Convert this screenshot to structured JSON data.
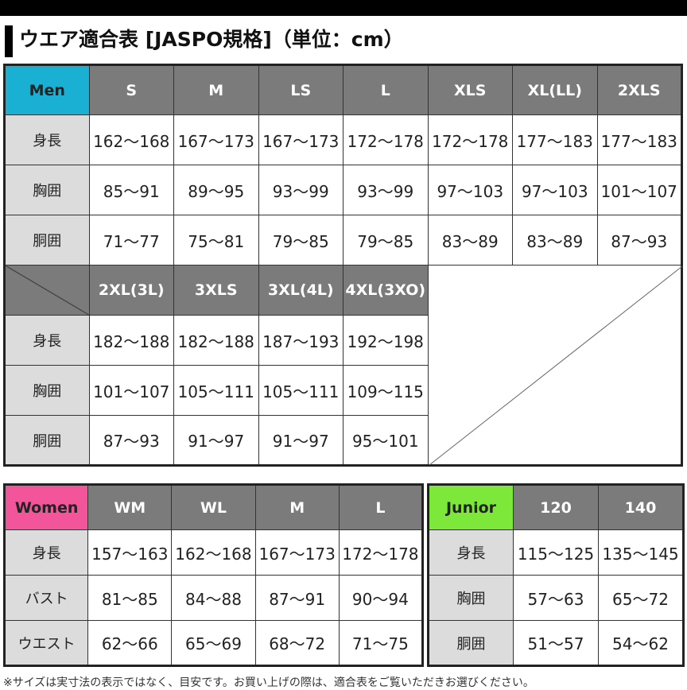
{
  "title": "ウエア適合表 [JASPO規格]（単位：cm）",
  "colors": {
    "men": "#1ab0d4",
    "women": "#f2559a",
    "junior": "#7ee83a",
    "header": "#7b7b7b",
    "row_label": "#dcdcdc"
  },
  "men": {
    "label": "Men",
    "sizes": [
      "S",
      "M",
      "LS",
      "L",
      "XLS",
      "XL(LL)",
      "2XLS"
    ],
    "rows": [
      {
        "label": "身長",
        "values": [
          "162～168",
          "167～173",
          "167～173",
          "172～178",
          "172～178",
          "177～183",
          "177～183"
        ]
      },
      {
        "label": "胸囲",
        "values": [
          "85～91",
          "89～95",
          "93～99",
          "93～99",
          "97～103",
          "97～103",
          "101～107"
        ]
      },
      {
        "label": "胴囲",
        "values": [
          "71～77",
          "75～81",
          "79～85",
          "79～85",
          "83～89",
          "83～89",
          "87～93"
        ]
      }
    ],
    "sizes2": [
      "2XL(3L)",
      "3XLS",
      "3XL(4L)",
      "4XL(3XO)"
    ],
    "rows2": [
      {
        "label": "身長",
        "values": [
          "182～188",
          "182～188",
          "187～193",
          "192～198"
        ]
      },
      {
        "label": "胸囲",
        "values": [
          "101～107",
          "105～111",
          "105～111",
          "109～115"
        ]
      },
      {
        "label": "胴囲",
        "values": [
          "87～93",
          "91～97",
          "91～97",
          "95～101"
        ]
      }
    ]
  },
  "women": {
    "label": "Women",
    "sizes": [
      "WM",
      "WL",
      "M",
      "L"
    ],
    "rows": [
      {
        "label": "身長",
        "values": [
          "157～163",
          "162～168",
          "167～173",
          "172～178"
        ]
      },
      {
        "label": "バスト",
        "values": [
          "81～85",
          "84～88",
          "87～91",
          "90～94"
        ]
      },
      {
        "label": "ウエスト",
        "values": [
          "62～66",
          "65～69",
          "68～72",
          "71～75"
        ]
      }
    ]
  },
  "junior": {
    "label": "Junior",
    "sizes": [
      "120",
      "140"
    ],
    "rows": [
      {
        "label": "身長",
        "values": [
          "115～125",
          "135～145"
        ]
      },
      {
        "label": "胸囲",
        "values": [
          "57～63",
          "65～72"
        ]
      },
      {
        "label": "胴囲",
        "values": [
          "51～57",
          "54～62"
        ]
      }
    ]
  },
  "note": "※サイズは実寸法の表示ではなく、目安です。お買い上げの際は、適合表をご覧いただきお選びください。"
}
